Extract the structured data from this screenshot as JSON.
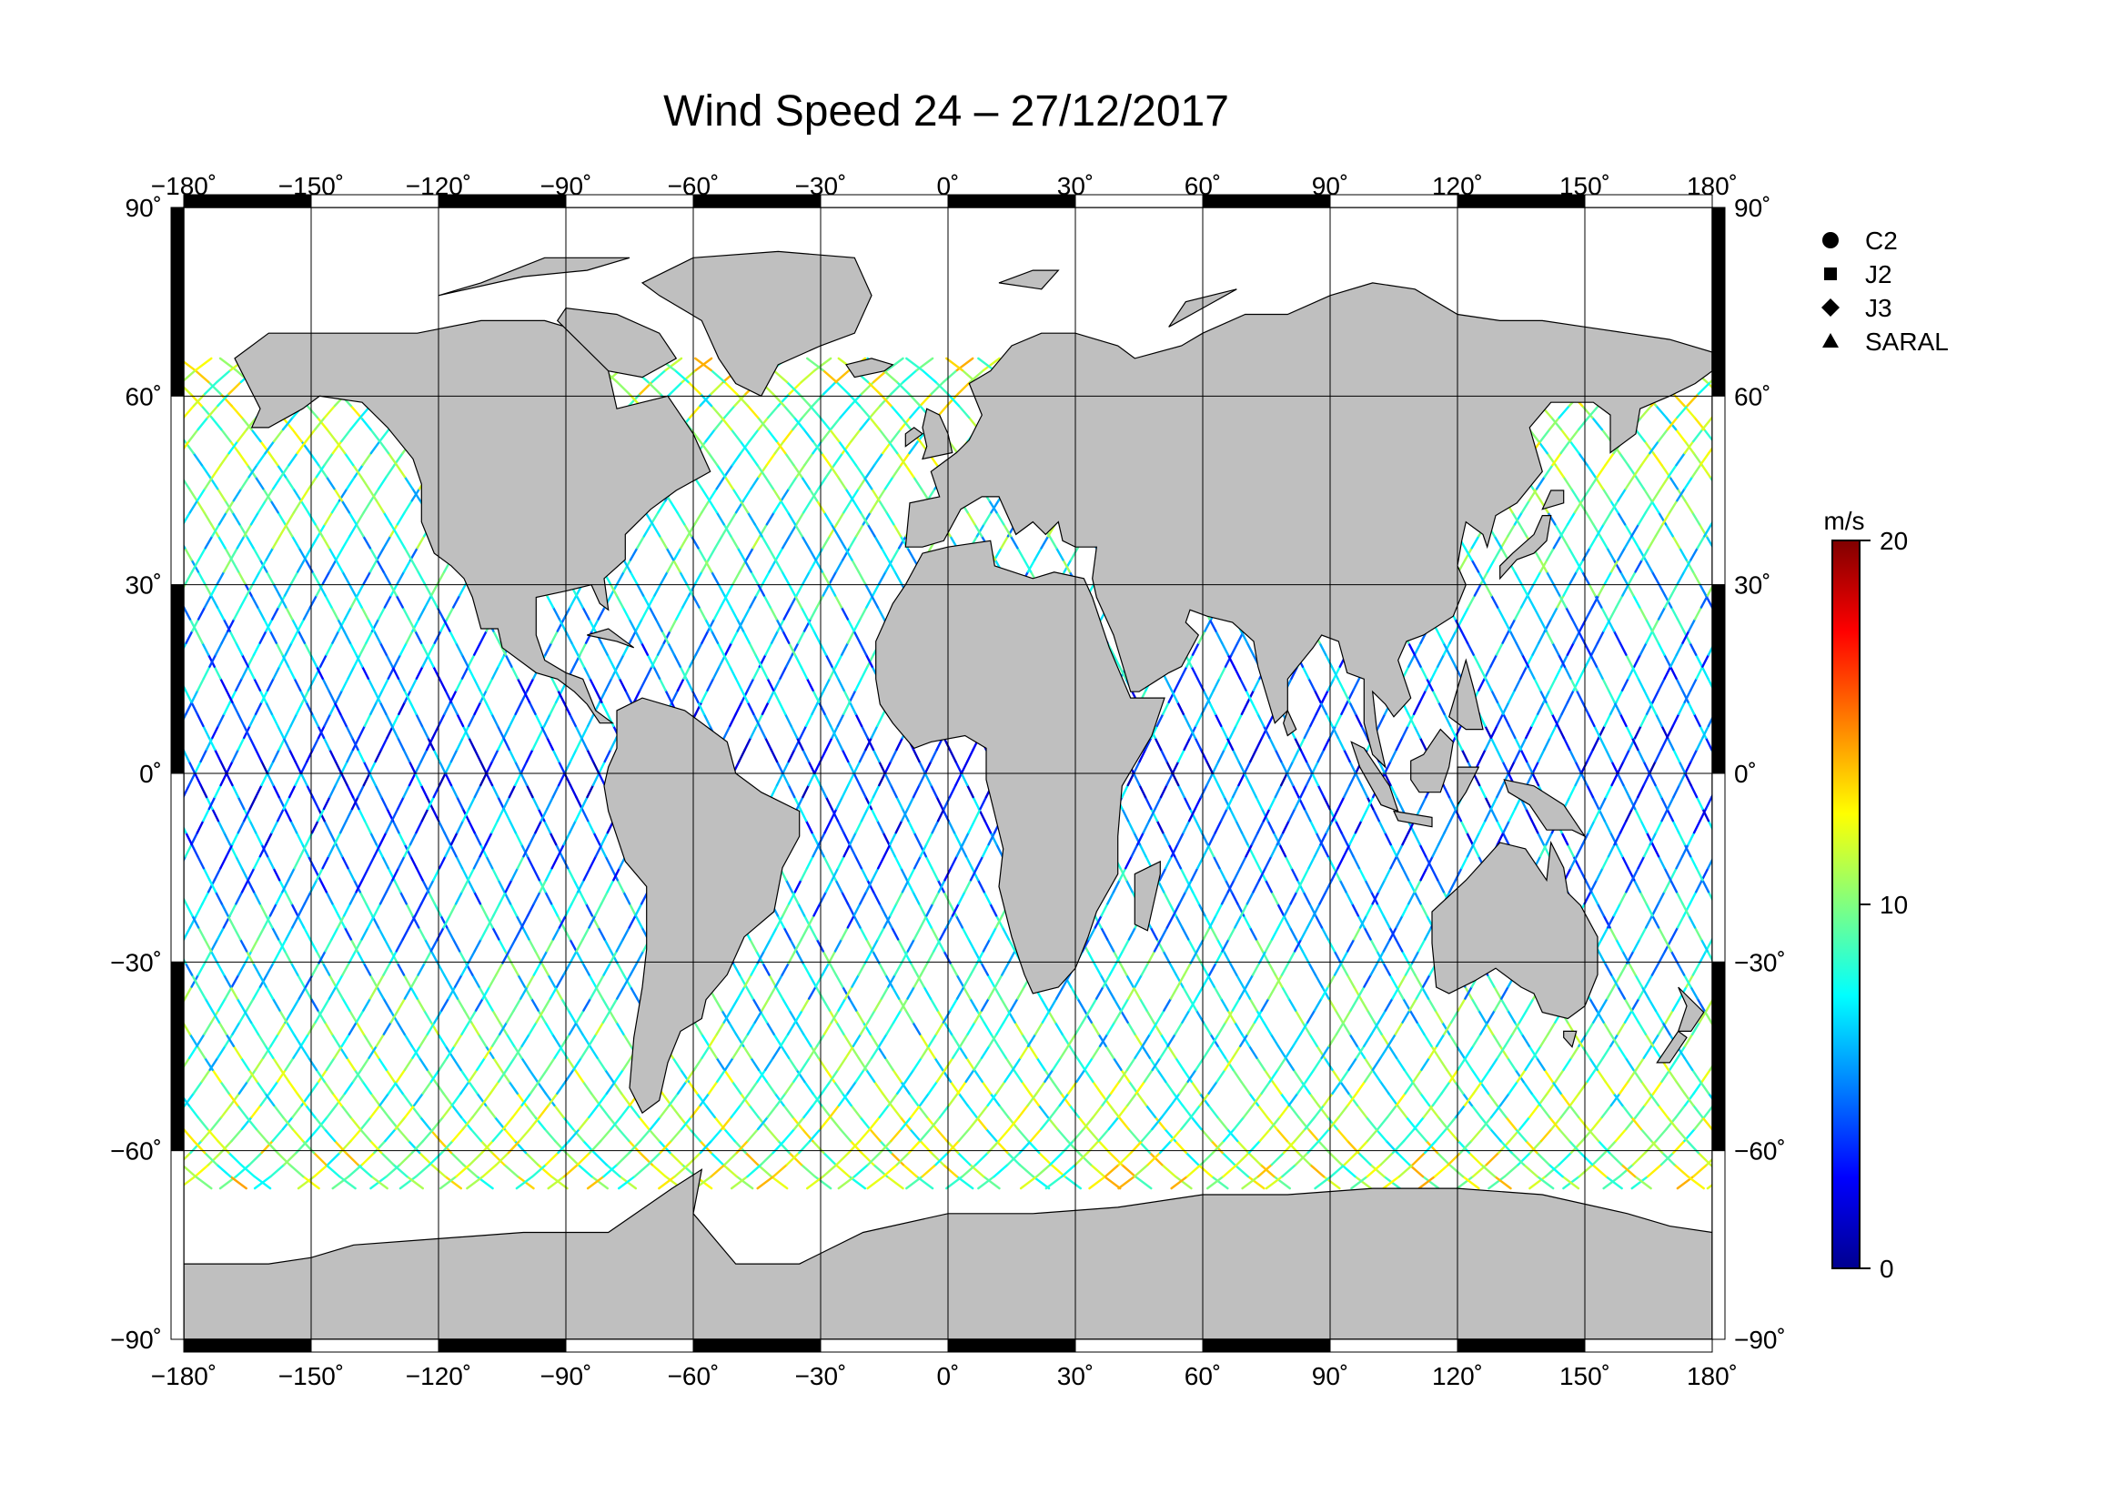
{
  "title": "Wind Speed 24 – 27/12/2017",
  "lon_ticks": [
    "−180˚",
    "−150˚",
    "−120˚",
    "−90˚",
    "−60˚",
    "−30˚",
    "0˚",
    "30˚",
    "60˚",
    "90˚",
    "120˚",
    "150˚",
    "180˚"
  ],
  "lat_ticks_left": [
    "90˚",
    "60˚",
    "30˚",
    "0˚",
    "−30˚",
    "−60˚",
    "−90˚"
  ],
  "lat_ticks_right": [
    "90˚",
    "60˚",
    "30˚",
    "0˚",
    "−30˚",
    "−60˚",
    "−90˚"
  ],
  "legend": {
    "items": [
      {
        "label": "C2",
        "marker": "circle"
      },
      {
        "label": "J2",
        "marker": "square"
      },
      {
        "label": "J3",
        "marker": "diamond"
      },
      {
        "label": "SARAL",
        "marker": "triangle"
      }
    ]
  },
  "colorbar": {
    "unit": "m/s",
    "min": 0,
    "max": 20,
    "tick_labels": [
      "20",
      "10",
      "0"
    ],
    "colors": [
      "#00008f",
      "#0000ff",
      "#0080ff",
      "#00ffff",
      "#80ff80",
      "#ffff00",
      "#ff8000",
      "#ff0000",
      "#800000"
    ]
  },
  "map": {
    "lon_range": [
      -180,
      180
    ],
    "lat_range": [
      -90,
      90
    ],
    "grid_spacing_deg": 30,
    "land_color": "#bfbfbf",
    "ocean_color": "#ffffff"
  }
}
